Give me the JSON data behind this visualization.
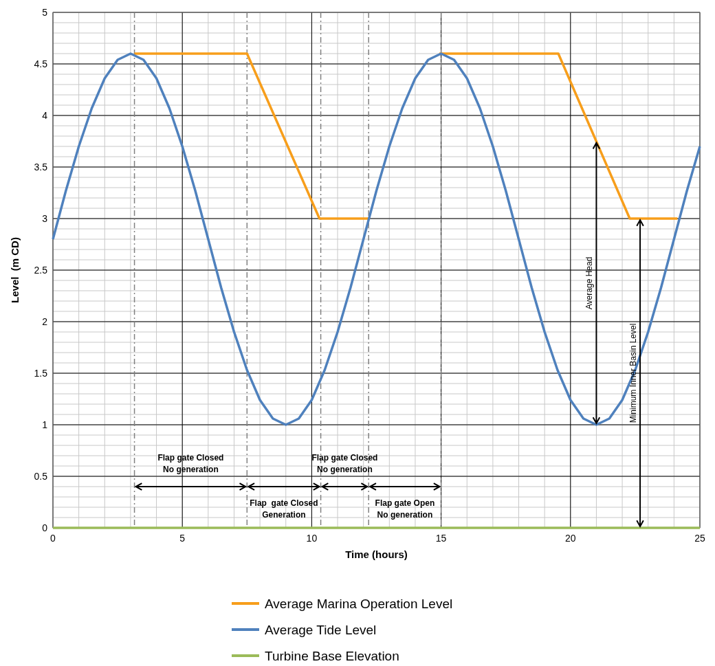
{
  "chart_data": {
    "type": "line",
    "xlabel": "Time (hours)",
    "ylabel": "Level  (m CD)",
    "xlim": [
      0,
      25
    ],
    "xticks": [
      0,
      5,
      10,
      15,
      20,
      25
    ],
    "ylim": [
      0,
      5
    ],
    "yticks": [
      0,
      0.5,
      1,
      1.5,
      2,
      2.5,
      3,
      3.5,
      4,
      4.5,
      5
    ],
    "grid": true,
    "legend": "bottom",
    "marker": "none",
    "line_style": "solid",
    "series": [
      {
        "name": "Average Marina Operation Level",
        "color": "#f79e1b",
        "x": [
          3.15,
          7.5,
          10.3,
          12.2,
          13.5,
          14.93,
          19.53,
          22.29,
          24.13
        ],
        "values": [
          4.6,
          4.6,
          3,
          3,
          null,
          4.6,
          4.6,
          3,
          3
        ]
      },
      {
        "name": "Average Tide Level",
        "color": "#4f81bd",
        "x": [
          0,
          0.5,
          1,
          1.5,
          2,
          2.5,
          3,
          3.5,
          4,
          4.5,
          5,
          5.5,
          6,
          6.5,
          7,
          7.5,
          8,
          8.5,
          9,
          9.5,
          10,
          10.5,
          11,
          11.5,
          12,
          12.5,
          13,
          13.5,
          14,
          14.5,
          15,
          15.5,
          16,
          16.5,
          17,
          17.5,
          18,
          18.5,
          19,
          19.5,
          20,
          20.5,
          21,
          21.5,
          22,
          22.5,
          23,
          23.5,
          24,
          24.5,
          25
        ],
        "values": [
          2.8,
          3.27,
          3.7,
          4.07,
          4.36,
          4.54,
          4.6,
          4.54,
          4.36,
          4.07,
          3.7,
          3.27,
          2.8,
          2.33,
          1.9,
          1.53,
          1.24,
          1.06,
          1.0,
          1.06,
          1.24,
          1.53,
          1.9,
          2.33,
          2.8,
          3.27,
          3.7,
          4.07,
          4.36,
          4.54,
          4.6,
          4.54,
          4.36,
          4.07,
          3.7,
          3.27,
          2.8,
          2.33,
          1.9,
          1.53,
          1.24,
          1.06,
          1.0,
          1.06,
          1.24,
          1.53,
          1.9,
          2.33,
          2.8,
          3.27,
          3.7
        ]
      },
      {
        "name": "Turbine Base Elevation",
        "color": "#9bbb59",
        "x": [
          0,
          25
        ],
        "values": [
          0,
          0
        ]
      }
    ],
    "ref_lines": [
      {
        "axis": "x",
        "value": 3.15,
        "color": "#808080",
        "line_style": "dashed"
      },
      {
        "axis": "x",
        "value": 7.5,
        "color": "#808080",
        "line_style": "dashed"
      },
      {
        "axis": "x",
        "value": 10.35,
        "color": "#808080",
        "line_style": "dashed"
      },
      {
        "axis": "x",
        "value": 12.2,
        "color": "#808080",
        "line_style": "dashed"
      },
      {
        "axis": "x",
        "value": 15,
        "color": "#808080",
        "line_style": "dashed"
      }
    ],
    "annotations": [
      "Flap gate Closed\nNo generation",
      "Flap  gate Closed\nGeneration",
      "Flap gate Closed\nNo generation",
      "Flap gate Open\nNo generation",
      "Average Head",
      "Minimum Inner Basin Level"
    ]
  }
}
